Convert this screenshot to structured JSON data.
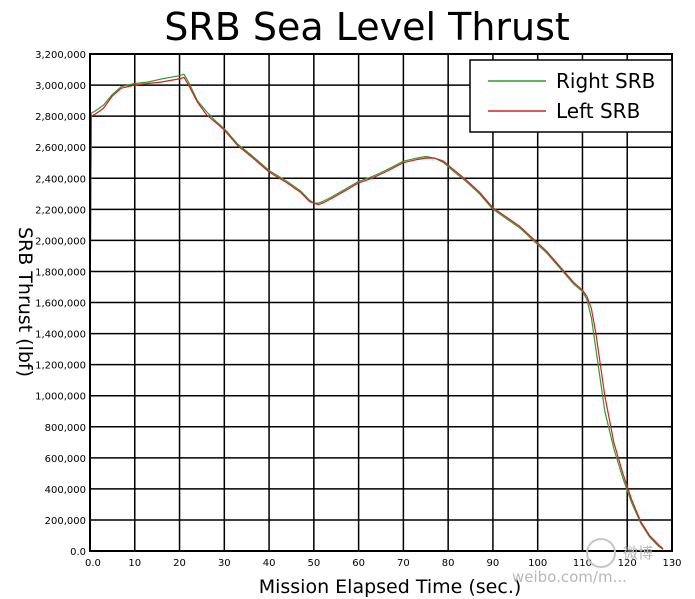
{
  "chart_data": {
    "type": "line",
    "title": "SRB Sea Level Thrust",
    "xlabel": "Mission Elapsed Time (sec.)",
    "ylabel": "SRB Thrust (lbf)",
    "xlim": [
      0,
      130
    ],
    "ylim": [
      0,
      3200000
    ],
    "xticks": [
      0,
      10,
      20,
      30,
      40,
      50,
      60,
      70,
      80,
      90,
      100,
      110,
      120,
      130
    ],
    "xtick_labels": [
      "0.0",
      "10",
      "20",
      "30",
      "40",
      "50",
      "60",
      "70",
      "80",
      "90",
      "100",
      "110",
      "120",
      "130"
    ],
    "yticks": [
      0,
      200000,
      400000,
      600000,
      800000,
      1000000,
      1200000,
      1400000,
      1600000,
      1800000,
      2000000,
      2200000,
      2400000,
      2600000,
      2800000,
      3000000,
      3200000
    ],
    "ytick_labels": [
      "0.0",
      "200,000",
      "400,000",
      "600,000",
      "800,000",
      "1,000,000",
      "1,200,000",
      "1,400,000",
      "1,600,000",
      "1,800,000",
      "2,000,000",
      "2,200,000",
      "2,400,000",
      "2,600,000",
      "2,800,000",
      "3,000,000",
      "3,200,000"
    ],
    "grid": true,
    "legend_position": "top-right",
    "series": [
      {
        "name": "Right SRB",
        "color": "#2e9b2e",
        "x": [
          0,
          0.3,
          1,
          3,
          5,
          7,
          10,
          13,
          16,
          18,
          20,
          21,
          22,
          24,
          26,
          28,
          30,
          33,
          36,
          40,
          44,
          47,
          49,
          50,
          51,
          52,
          54,
          57,
          60,
          63,
          66,
          70,
          73,
          75,
          77,
          79,
          81,
          84,
          87,
          90,
          93,
          96,
          99,
          102,
          105,
          108,
          110,
          111,
          112,
          113,
          115,
          117,
          119,
          121,
          123,
          125,
          127,
          128
        ],
        "y": [
          1500000,
          2820000,
          2830000,
          2870000,
          2940000,
          2990000,
          3010000,
          3020000,
          3040000,
          3050000,
          3060000,
          3070000,
          3020000,
          2900000,
          2830000,
          2770000,
          2720000,
          2620000,
          2550000,
          2450000,
          2380000,
          2320000,
          2260000,
          2240000,
          2240000,
          2250000,
          2280000,
          2330000,
          2380000,
          2410000,
          2450000,
          2510000,
          2530000,
          2540000,
          2530000,
          2500000,
          2450000,
          2380000,
          2300000,
          2200000,
          2140000,
          2080000,
          2000000,
          1920000,
          1820000,
          1720000,
          1670000,
          1620000,
          1500000,
          1300000,
          900000,
          660000,
          470000,
          310000,
          180000,
          90000,
          30000,
          10000
        ]
      },
      {
        "name": "Left SRB",
        "color": "#d42020",
        "x": [
          0,
          0.3,
          1,
          3,
          5,
          7,
          10,
          13,
          16,
          18,
          20,
          21,
          22,
          24,
          26,
          28,
          30,
          33,
          36,
          40,
          44,
          47,
          49,
          50,
          51,
          52,
          54,
          57,
          60,
          63,
          66,
          70,
          73,
          75,
          77,
          79,
          81,
          84,
          87,
          90,
          93,
          96,
          99,
          102,
          105,
          108,
          110,
          111,
          112,
          113,
          115,
          117,
          119,
          121,
          123,
          125,
          127,
          128
        ],
        "y": [
          1500000,
          2800000,
          2810000,
          2850000,
          2930000,
          2980000,
          3000000,
          3010000,
          3020000,
          3030000,
          3040000,
          3050000,
          3000000,
          2890000,
          2810000,
          2760000,
          2710000,
          2610000,
          2540000,
          2440000,
          2370000,
          2310000,
          2250000,
          2240000,
          2230000,
          2240000,
          2270000,
          2320000,
          2370000,
          2400000,
          2440000,
          2500000,
          2520000,
          2530000,
          2530000,
          2510000,
          2460000,
          2390000,
          2310000,
          2210000,
          2150000,
          2090000,
          2010000,
          1930000,
          1830000,
          1730000,
          1680000,
          1640000,
          1560000,
          1400000,
          1000000,
          700000,
          500000,
          330000,
          190000,
          100000,
          40000,
          15000
        ]
      }
    ]
  },
  "watermark": {
    "line1": "微博",
    "line2": "weibo.com/m..."
  }
}
